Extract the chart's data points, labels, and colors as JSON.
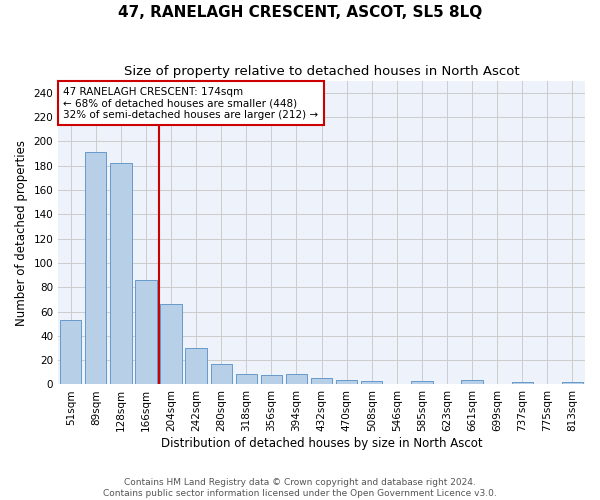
{
  "title": "47, RANELAGH CRESCENT, ASCOT, SL5 8LQ",
  "subtitle": "Size of property relative to detached houses in North Ascot",
  "xlabel": "Distribution of detached houses by size in North Ascot",
  "ylabel": "Number of detached properties",
  "footer_line1": "Contains HM Land Registry data © Crown copyright and database right 2024.",
  "footer_line2": "Contains public sector information licensed under the Open Government Licence v3.0.",
  "categories": [
    "51sqm",
    "89sqm",
    "128sqm",
    "166sqm",
    "204sqm",
    "242sqm",
    "280sqm",
    "318sqm",
    "356sqm",
    "394sqm",
    "432sqm",
    "470sqm",
    "508sqm",
    "546sqm",
    "585sqm",
    "623sqm",
    "661sqm",
    "699sqm",
    "737sqm",
    "775sqm",
    "813sqm"
  ],
  "values": [
    53,
    191,
    182,
    86,
    66,
    30,
    17,
    9,
    8,
    9,
    5,
    4,
    3,
    0,
    3,
    0,
    4,
    0,
    2,
    0,
    2
  ],
  "bar_color": "#b8cfe8",
  "bar_edge_color": "#6699cc",
  "red_line_x": 3.5,
  "red_line_color": "#cc0000",
  "annotation_text_line1": "47 RANELAGH CRESCENT: 174sqm",
  "annotation_text_line2": "← 68% of detached houses are smaller (448)",
  "annotation_text_line3": "32% of semi-detached houses are larger (212) →",
  "annotation_box_color": "#cc0000",
  "ylim": [
    0,
    250
  ],
  "yticks": [
    0,
    20,
    40,
    60,
    80,
    100,
    120,
    140,
    160,
    180,
    200,
    220,
    240
  ],
  "grid_color": "#cccccc",
  "background_color": "#eef2fa",
  "title_fontsize": 11,
  "subtitle_fontsize": 9.5,
  "axis_label_fontsize": 8.5,
  "tick_fontsize": 7.5,
  "footer_fontsize": 6.5,
  "annotation_fontsize": 7.5
}
